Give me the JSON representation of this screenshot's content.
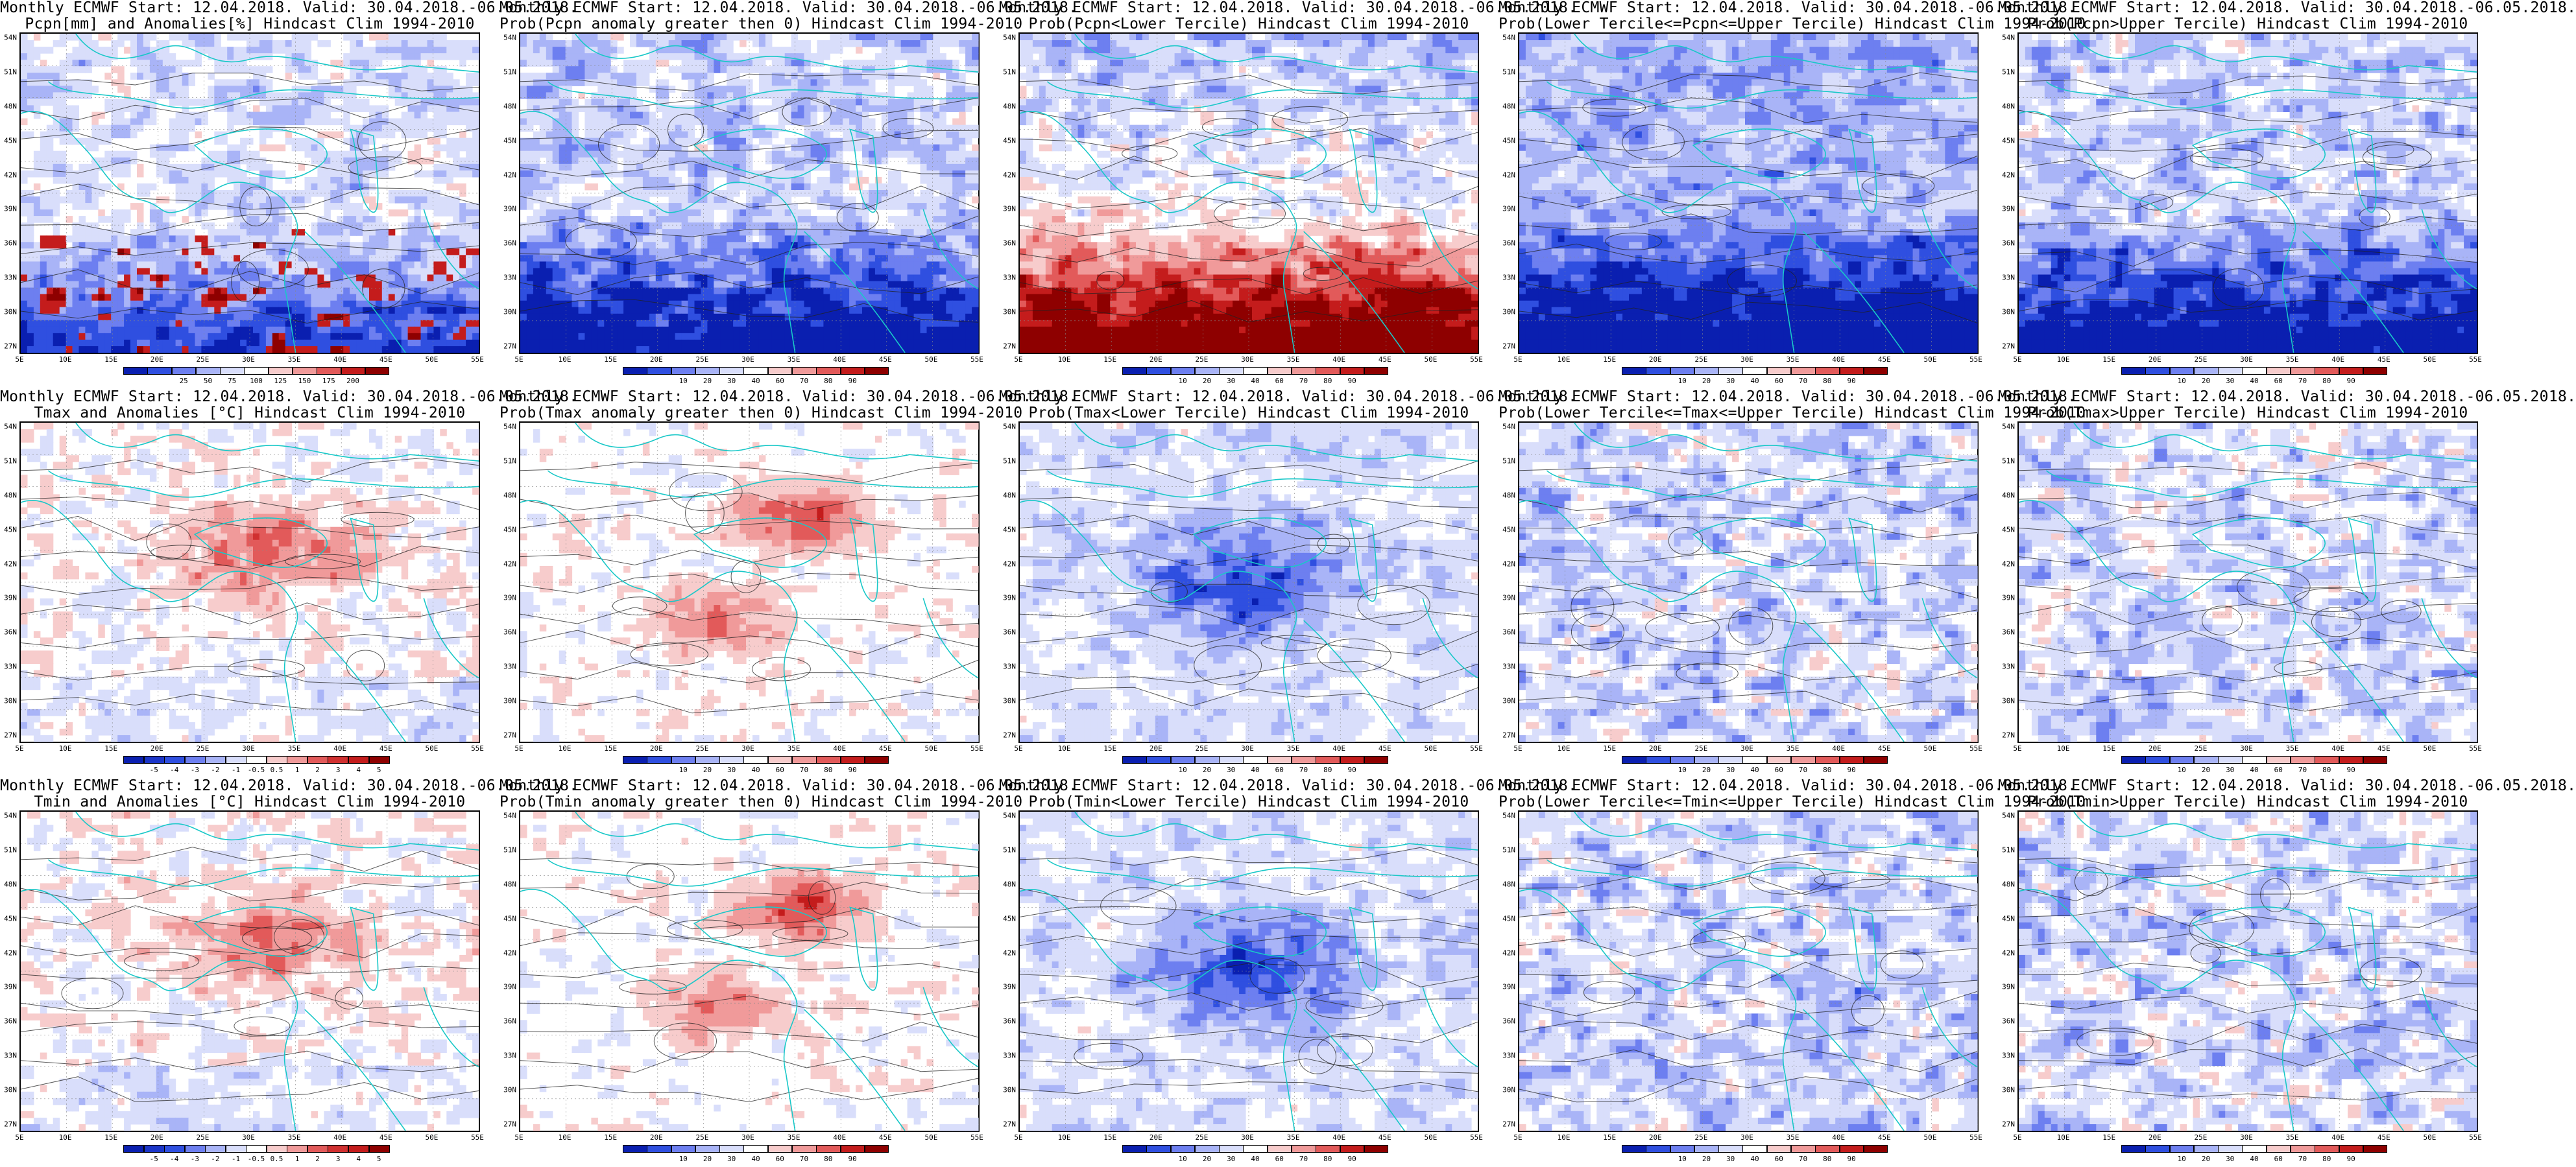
{
  "lat_labels": [
    "54N",
    "51N",
    "48N",
    "45N",
    "42N",
    "39N",
    "36N",
    "33N",
    "30N",
    "27N"
  ],
  "lon_labels": [
    "5E",
    "10E",
    "15E",
    "20E",
    "25E",
    "30E",
    "35E",
    "40E",
    "45E",
    "50E",
    "55E"
  ],
  "colorbars": {
    "precip_anom": {
      "labels": [
        "25",
        "50",
        "75",
        "100",
        "125",
        "150",
        "175",
        "200"
      ],
      "colors": [
        "#0a1fb0",
        "#2f4fe0",
        "#6d7ff0",
        "#a9b4f7",
        "#d9defb",
        "#ffffff",
        "#f7cccc",
        "#f09a9a",
        "#e25a5a",
        "#c41c1c",
        "#8e0000"
      ]
    },
    "prob": {
      "labels": [
        "10",
        "20",
        "30",
        "40",
        "60",
        "70",
        "80",
        "90"
      ],
      "colors": [
        "#0a1fb0",
        "#2f4fe0",
        "#6d7ff0",
        "#a9b4f7",
        "#d9defb",
        "#ffffff",
        "#f7cccc",
        "#f09a9a",
        "#e25a5a",
        "#c41c1c",
        "#8e0000"
      ]
    },
    "temp_anom": {
      "labels": [
        "-5",
        "-4",
        "-3",
        "-2",
        "-1",
        "-0.5",
        "0.5",
        "1",
        "2",
        "3",
        "4",
        "5"
      ],
      "colors": [
        "#0a1fb0",
        "#1b35c8",
        "#2f4fe0",
        "#6d7ff0",
        "#a9b4f7",
        "#d9defb",
        "#ffffff",
        "#f7cccc",
        "#f09a9a",
        "#e25a5a",
        "#d03030",
        "#c41c1c",
        "#8e0000"
      ]
    }
  },
  "panels": [
    {
      "title1": "Monthly ECMWF Start: 12.04.2018. Valid: 30.04.2018.-06.05.2018.",
      "title2": "Pcpn[mm] and Anomalies[%] Hindcast Clim 1994-2010",
      "style": "precip_anom",
      "cb": "precip_anom"
    },
    {
      "title1": "Monthly ECMWF Start: 12.04.2018. Valid: 30.04.2018.-06.05.2018.",
      "title2": "Prob(Pcpn anomaly greater then 0) Hindcast Clim 1994-2010",
      "style": "blue_south",
      "cb": "prob"
    },
    {
      "title1": "Monthly ECMWF Start: 12.04.2018. Valid: 30.04.2018.-06.05.2018.",
      "title2": "Prob(Pcpn<Lower Tercile) Hindcast Clim 1994-2010",
      "style": "red_south",
      "cb": "prob"
    },
    {
      "title1": "Monthly ECMWF Start: 12.04.2018. Valid: 30.04.2018.-06.05.2018.",
      "title2": "Prob(Lower Tercile<=Pcpn<=Upper Tercile) Hindcast Clim 1994-2010",
      "style": "deep_blue",
      "cb": "prob"
    },
    {
      "title1": "Monthly ECMWF Start: 12.04.2018. Valid: 30.04.2018.-06.05.2018.",
      "title2": "Prob(Pcpn>Upper Tercile) Hindcast Clim 1994-2010",
      "style": "blue_south",
      "cb": "prob"
    },
    {
      "title1": "Monthly ECMWF Start: 12.04.2018. Valid: 30.04.2018.-06.05.2018.",
      "title2": "Tmax and Anomalies [°C] Hindcast Clim 1994-2010",
      "style": "warm_light",
      "cb": "temp_anom"
    },
    {
      "title1": "Monthly ECMWF Start: 12.04.2018. Valid: 30.04.2018.-06.05.2018.",
      "title2": "Prob(Tmax anomaly greater then 0) Hindcast Clim 1994-2010",
      "style": "warm_strong",
      "cb": "prob"
    },
    {
      "title1": "Monthly ECMWF Start: 12.04.2018. Valid: 30.04.2018.-06.05.2018.",
      "title2": "Prob(Tmax<Lower Tercile) Hindcast Clim 1994-2010",
      "style": "cool_center",
      "cb": "prob"
    },
    {
      "title1": "Monthly ECMWF Start: 12.04.2018. Valid: 30.04.2018.-06.05.2018.",
      "title2": "Prob(Lower Tercile<=Tmax<=Upper Tercile) Hindcast Clim 1994-2010",
      "style": "blue_mixed",
      "cb": "prob"
    },
    {
      "title1": "Monthly ECMWF Start: 12.04.2018. Valid: 30.04.2018.-06.05.2018.",
      "title2": "Prob(Tmax>Upper Tercile) Hindcast Clim 1994-2010",
      "style": "blue_mixed",
      "cb": "prob"
    },
    {
      "title1": "Monthly ECMWF Start: 12.04.2018. Valid: 30.04.2018.-06.05.2018.",
      "title2": "Tmin and Anomalies [°C] Hindcast Clim 1994-2010",
      "style": "warm_light",
      "cb": "temp_anom"
    },
    {
      "title1": "Monthly ECMWF Start: 12.04.2018. Valid: 30.04.2018.-06.05.2018.",
      "title2": "Prob(Tmin anomaly greater then 0) Hindcast Clim 1994-2010",
      "style": "warm_strong",
      "cb": "prob"
    },
    {
      "title1": "Monthly ECMWF Start: 12.04.2018. Valid: 30.04.2018.-06.05.2018.",
      "title2": "Prob(Tmin<Lower Tercile) Hindcast Clim 1994-2010",
      "style": "cool_center",
      "cb": "prob"
    },
    {
      "title1": "Monthly ECMWF Start: 12.04.2018. Valid: 30.04.2018.-06.05.2018.",
      "title2": "Prob(Lower Tercile<=Tmin<=Upper Tercile) Hindcast Clim 1994-2010",
      "style": "blue_mixed",
      "cb": "prob"
    },
    {
      "title1": "Monthly ECMWF Start: 12.04.2018. Valid: 30.04.2018.-06.05.2018.",
      "title2": "Prob(Tmin>Upper Tercile) Hindcast Clim 1994-2010",
      "style": "blue_mixed",
      "cb": "prob"
    }
  ]
}
